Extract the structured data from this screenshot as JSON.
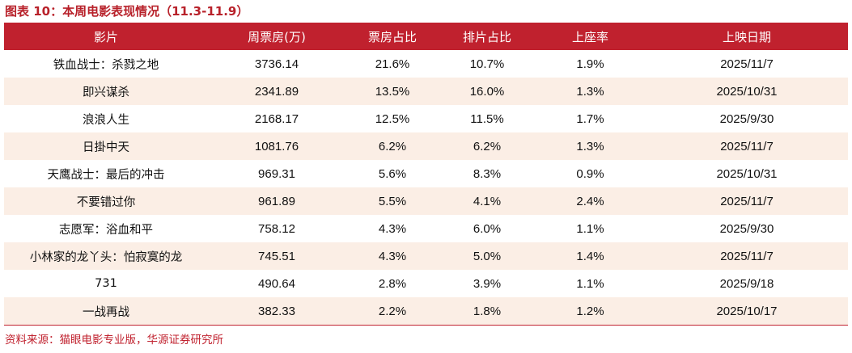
{
  "title": "图表 10：本周电影表现情况（11.3-11.9）",
  "columns": [
    "影片",
    "周票房(万)",
    "票房占比",
    "排片占比",
    "上座率",
    "上映日期"
  ],
  "rows": [
    [
      "铁血战士：杀戮之地",
      "3736.14",
      "21.6%",
      "10.7%",
      "1.9%",
      "2025/11/7"
    ],
    [
      "即兴谋杀",
      "2341.89",
      "13.5%",
      "16.0%",
      "1.3%",
      "2025/10/31"
    ],
    [
      "浪浪人生",
      "2168.17",
      "12.5%",
      "11.5%",
      "1.7%",
      "2025/9/30"
    ],
    [
      "日掛中天",
      "1081.76",
      "6.2%",
      "6.2%",
      "1.3%",
      "2025/11/7"
    ],
    [
      "天鹰战士：最后的冲击",
      "969.31",
      "5.6%",
      "8.3%",
      "0.9%",
      "2025/10/31"
    ],
    [
      "不要错过你",
      "961.89",
      "5.5%",
      "4.1%",
      "2.4%",
      "2025/11/7"
    ],
    [
      "志愿军：浴血和平",
      "758.12",
      "4.3%",
      "6.0%",
      "1.1%",
      "2025/9/30"
    ],
    [
      "小林家的龙丫头：怕寂寞的龙",
      "745.51",
      "4.3%",
      "5.0%",
      "1.4%",
      "2025/11/7"
    ],
    [
      "731",
      "490.64",
      "2.8%",
      "3.9%",
      "1.1%",
      "2025/9/18"
    ],
    [
      "一战再战",
      "382.33",
      "2.2%",
      "1.8%",
      "1.2%",
      "2025/10/17"
    ]
  ],
  "source": "资料来源：猫眼电影专业版，华源证券研究所",
  "colors": {
    "header_bg": "#c0212e",
    "title": "#b8212a",
    "alt_row_bg": "#fbeee5"
  }
}
